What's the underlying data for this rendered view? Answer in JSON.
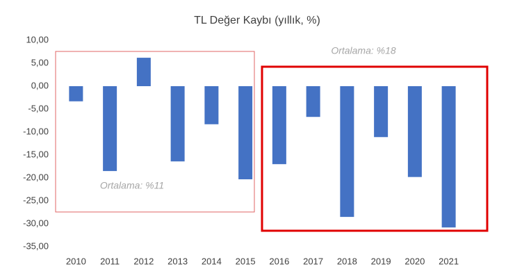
{
  "chart_data": {
    "type": "bar",
    "title": "TL Değer Kaybı (yıllık, %)",
    "categories": [
      "2010",
      "2011",
      "2012",
      "2013",
      "2014",
      "2015",
      "2016",
      "2017",
      "2018",
      "2019",
      "2020",
      "2021"
    ],
    "values": [
      -3.3,
      -18.5,
      6.2,
      -16.4,
      -8.3,
      -20.3,
      -17.0,
      -6.7,
      -28.5,
      -11.1,
      -19.8,
      -30.8
    ],
    "color": "#4472c4",
    "ylim": [
      -35,
      10
    ],
    "yticks": [
      {
        "value": -35,
        "label": "-35,00"
      },
      {
        "value": -30,
        "label": "-30,00"
      },
      {
        "value": -25,
        "label": "-25,00"
      },
      {
        "value": -20,
        "label": "-20,00"
      },
      {
        "value": -15,
        "label": "-15,00"
      },
      {
        "value": -10,
        "label": "-10,00"
      },
      {
        "value": -5,
        "label": "-5,00"
      },
      {
        "value": 0,
        "label": "0,00"
      },
      {
        "value": 5,
        "label": "5,00"
      },
      {
        "value": 10,
        "label": "10,00"
      }
    ],
    "grid": false,
    "annotations": [
      "Ortalama: %11",
      "Ortalama: %18"
    ]
  }
}
